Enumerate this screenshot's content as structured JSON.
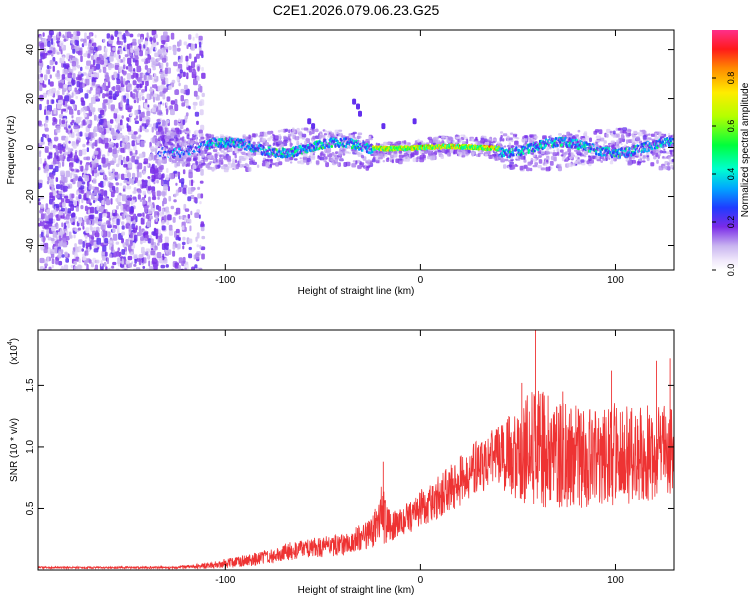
{
  "title": "C2E1.2026.079.06.23.G25",
  "chart_data": [
    {
      "type": "heatmap",
      "name": "spectrogram",
      "xlabel": "Height of straight line (km)",
      "ylabel": "Frequency (Hz)",
      "xlim": [
        -196,
        130
      ],
      "ylim": [
        -50,
        48
      ],
      "xticks": [
        -100,
        0,
        100
      ],
      "yticks": [
        -40,
        -20,
        0,
        20,
        40
      ],
      "colorbar": {
        "label": "Normalized spectral amplitude",
        "range": [
          0,
          1
        ],
        "ticks": [
          0.0,
          0.2,
          0.4,
          0.6,
          0.8
        ],
        "colormap": [
          "#ffffff",
          "#e4d8f7",
          "#b898f0",
          "#8a2be2",
          "#5a00e0",
          "#0033ff",
          "#00bfff",
          "#00ffd5",
          "#00ff40",
          "#c0ff00",
          "#ffff00",
          "#ff9900",
          "#ff0000",
          "#ff3388"
        ]
      },
      "features": {
        "noise_region_x": [
          -196,
          -112
        ],
        "signal_start_x": -135,
        "ridge_center_hz": 0,
        "strong_band_x": [
          -25,
          40
        ]
      }
    },
    {
      "type": "line",
      "name": "snr",
      "xlabel": "Height of straight line (km)",
      "ylabel": "SNR (10 * v/v)",
      "scale_label": "(x10",
      "scale_exp": "4",
      "xlim": [
        -196,
        130
      ],
      "ylim": [
        0,
        1.95
      ],
      "xticks": [
        -100,
        0,
        100
      ],
      "yticks": [
        0.5,
        1.0,
        1.5
      ],
      "ytick_labels": [
        "0.5",
        "1.0",
        "1.5"
      ],
      "color": "#ee3333",
      "envelope": {
        "x": [
          -196,
          -150,
          -125,
          -105,
          -80,
          -60,
          -40,
          -25,
          -20,
          -15,
          -10,
          0,
          10,
          20,
          30,
          40,
          50,
          55,
          60,
          70,
          80,
          90,
          100,
          110,
          120,
          130
        ],
        "mean": [
          0.02,
          0.02,
          0.02,
          0.04,
          0.1,
          0.18,
          0.2,
          0.3,
          0.45,
          0.35,
          0.38,
          0.5,
          0.6,
          0.72,
          0.85,
          0.92,
          0.95,
          1.0,
          0.98,
          0.95,
          0.92,
          0.9,
          0.95,
          0.92,
          0.96,
          0.95
        ],
        "spread": [
          0.008,
          0.008,
          0.01,
          0.03,
          0.06,
          0.08,
          0.09,
          0.12,
          0.25,
          0.12,
          0.12,
          0.15,
          0.18,
          0.2,
          0.22,
          0.25,
          0.4,
          0.5,
          0.5,
          0.45,
          0.42,
          0.4,
          0.42,
          0.4,
          0.4,
          0.38
        ]
      },
      "peaks": [
        [
          -19,
          0.88
        ],
        [
          59,
          1.95
        ],
        [
          52,
          1.52
        ],
        [
          98,
          1.62
        ],
        [
          121,
          1.7
        ],
        [
          128,
          1.72
        ],
        [
          73,
          1.45
        ]
      ]
    }
  ]
}
